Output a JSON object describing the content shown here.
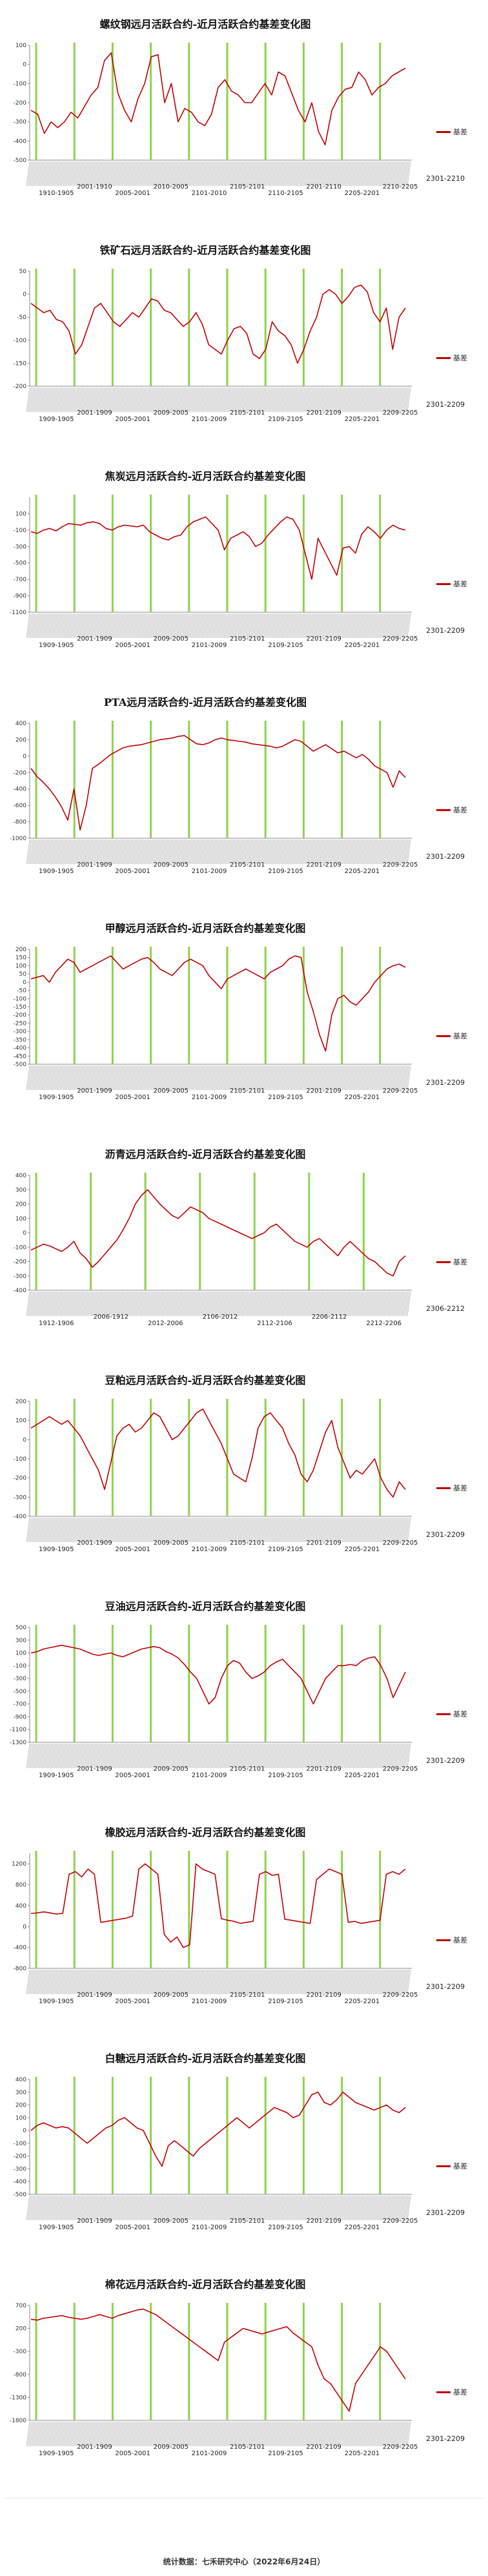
{
  "footer": "统计数据：七禾研究中心（2022年6月24日）",
  "colors": {
    "series": "#c00000",
    "marker": "#8fd14f",
    "axis": "#888888"
  },
  "chart_data": [
    {
      "type": "line",
      "title": "螺纹钢远月活跃合约-近月活跃合约基差变化图",
      "legend": "基差",
      "ylim": [
        -500,
        100
      ],
      "yticks": [
        100,
        0,
        -100,
        -200,
        -300,
        -400,
        -500
      ],
      "contract_labels": [
        "1910-1905",
        "2001-1910",
        "2005-2001",
        "2010-2005",
        "2101-2010",
        "2105-2101",
        "2110-2105",
        "2201-2110",
        "2205-2201",
        "2210-2205"
      ],
      "last_contract": "2301-2210",
      "series": [
        {
          "values": [
            -240,
            -260,
            -360,
            -300,
            -330,
            -300,
            -250,
            -280,
            -220,
            -160,
            -120,
            20,
            60,
            -150,
            -240,
            -300,
            -180,
            -100,
            40,
            50,
            -200,
            -100,
            -300,
            -230,
            -250,
            -300,
            -320,
            -260,
            -120,
            -80,
            -140,
            -160,
            -200,
            -200,
            -150,
            -100,
            -160,
            -40,
            -60,
            -150,
            -240,
            -300,
            -200,
            -350,
            -420,
            -240,
            -170,
            -130,
            -120,
            -40,
            -80,
            -160,
            -120,
            -100,
            -60,
            -40,
            -20
          ]
        }
      ]
    },
    {
      "type": "line",
      "title": "铁矿石远月活跃合约-近月活跃合约基差变化图",
      "legend": "基差",
      "ylim": [
        -200,
        50
      ],
      "yticks": [
        50,
        0,
        -50,
        -100,
        -150,
        -200
      ],
      "contract_labels": [
        "1909-1905",
        "2001-1909",
        "2005-2001",
        "2009-2005",
        "2101-2009",
        "2105-2101",
        "2109-2105",
        "2201-2109",
        "2205-2201",
        "2209-2205"
      ],
      "last_contract": "2301-2209",
      "series": [
        {
          "values": [
            -20,
            -30,
            -40,
            -35,
            -55,
            -60,
            -80,
            -130,
            -110,
            -70,
            -30,
            -20,
            -40,
            -60,
            -70,
            -55,
            -40,
            -50,
            -30,
            -10,
            -15,
            -35,
            -40,
            -55,
            -70,
            -60,
            -40,
            -65,
            -110,
            -120,
            -130,
            -100,
            -75,
            -70,
            -85,
            -130,
            -140,
            -120,
            -60,
            -80,
            -90,
            -110,
            -150,
            -120,
            -80,
            -50,
            0,
            10,
            0,
            -20,
            -5,
            15,
            20,
            5,
            -40,
            -60,
            -30,
            -120,
            -50,
            -30
          ]
        }
      ]
    },
    {
      "type": "line",
      "title": "焦炭远月活跃合约-近月活跃合约基差变化图",
      "legend": "基差",
      "ylim": [
        -1100,
        300
      ],
      "yticks": [
        100,
        -100,
        -300,
        -500,
        -700,
        -900,
        -1100
      ],
      "contract_labels": [
        "1909-1905",
        "2001-1909",
        "2005-2001",
        "2009-2005",
        "2101-2009",
        "2105-2101",
        "2109-2105",
        "2201-2109",
        "2205-2201",
        "2209-2205"
      ],
      "last_contract": "2301-2209",
      "series": [
        {
          "values": [
            -120,
            -140,
            -100,
            -80,
            -110,
            -60,
            -20,
            -30,
            -40,
            -10,
            0,
            -20,
            -80,
            -100,
            -60,
            -40,
            -50,
            -60,
            -40,
            -120,
            -160,
            -200,
            -220,
            -180,
            -160,
            -60,
            0,
            30,
            60,
            -20,
            -100,
            -340,
            -200,
            -160,
            -120,
            -180,
            -300,
            -260,
            -160,
            -80,
            0,
            60,
            30,
            -100,
            -400,
            -700,
            -200,
            -350,
            -500,
            -650,
            -320,
            -300,
            -380,
            -150,
            -60,
            -120,
            -200,
            -100,
            -40,
            -80,
            -100
          ]
        }
      ]
    },
    {
      "type": "line",
      "title": "PTA远月活跃合约-近月活跃合约基差变化图",
      "legend": "基差",
      "ylim": [
        -1000,
        400
      ],
      "yticks": [
        400,
        200,
        0,
        -200,
        -400,
        -600,
        -800,
        -1000
      ],
      "contract_labels": [
        "1909-1905",
        "2001-1909",
        "2005-2001",
        "2009-2005",
        "2101-2009",
        "2105-2101",
        "2109-2105",
        "2201-2109",
        "2205-2201",
        "2209-2205"
      ],
      "last_contract": "2301-2209",
      "series": [
        {
          "values": [
            -150,
            -250,
            -320,
            -400,
            -500,
            -620,
            -780,
            -400,
            -900,
            -600,
            -150,
            -100,
            -40,
            20,
            60,
            100,
            120,
            130,
            140,
            160,
            180,
            200,
            210,
            220,
            240,
            250,
            200,
            150,
            140,
            160,
            200,
            220,
            200,
            190,
            180,
            170,
            150,
            140,
            130,
            120,
            100,
            120,
            160,
            200,
            180,
            120,
            60,
            100,
            140,
            90,
            40,
            60,
            20,
            -20,
            20,
            -40,
            -120,
            -160,
            -200,
            -380,
            -180,
            -260
          ]
        }
      ]
    },
    {
      "type": "line",
      "title": "甲醇远月活跃合约-近月活跃合约基差变化图",
      "legend": "基差",
      "ylim": [
        -500,
        200
      ],
      "yticks": [
        200,
        150,
        100,
        50,
        0,
        -50,
        -100,
        -150,
        -200,
        -250,
        -300,
        -350,
        -400,
        -450,
        -500
      ],
      "contract_labels": [
        "1909-1905",
        "2001-1909",
        "2005-2001",
        "2009-2005",
        "2101-2009",
        "2105-2101",
        "2109-2105",
        "2201-2109",
        "2205-2201",
        "2209-2205"
      ],
      "last_contract": "2301-2209",
      "series": [
        {
          "values": [
            20,
            30,
            40,
            0,
            60,
            100,
            140,
            120,
            60,
            80,
            100,
            120,
            140,
            160,
            120,
            80,
            100,
            120,
            140,
            150,
            120,
            80,
            60,
            40,
            80,
            120,
            140,
            120,
            100,
            40,
            0,
            -40,
            20,
            40,
            60,
            80,
            60,
            40,
            20,
            60,
            80,
            100,
            140,
            160,
            150,
            -60,
            -180,
            -320,
            -420,
            -200,
            -100,
            -80,
            -120,
            -140,
            -100,
            -60,
            0,
            40,
            80,
            100,
            110,
            90
          ]
        }
      ]
    },
    {
      "type": "line",
      "title": "沥青远月活跃合约-近月活跃合约基差变化图",
      "legend": "基差",
      "ylim": [
        -400,
        400
      ],
      "yticks": [
        400,
        300,
        200,
        100,
        0,
        -100,
        -200,
        -300,
        -400
      ],
      "contract_labels": [
        "1912-1906",
        "2006-1912",
        "2012-2006",
        "2106-2012",
        "2112-2106",
        "2206-2112",
        "2212-2206"
      ],
      "last_contract": "2306-2212",
      "series": [
        {
          "values": [
            -120,
            -100,
            -80,
            -90,
            -110,
            -130,
            -100,
            -60,
            -140,
            -180,
            -240,
            -200,
            -150,
            -100,
            -50,
            20,
            100,
            200,
            260,
            300,
            250,
            200,
            160,
            120,
            100,
            140,
            180,
            160,
            140,
            100,
            80,
            60,
            40,
            20,
            0,
            -20,
            -40,
            -20,
            0,
            40,
            60,
            20,
            -20,
            -60,
            -80,
            -100,
            -60,
            -40,
            -80,
            -120,
            -160,
            -100,
            -60,
            -100,
            -140,
            -180,
            -200,
            -240,
            -280,
            -300,
            -200,
            -160
          ]
        }
      ]
    },
    {
      "type": "line",
      "title": "豆粕远月活跃合约-近月活跃合约基差变化图",
      "legend": "基差",
      "ylim": [
        -400,
        200
      ],
      "yticks": [
        200,
        100,
        0,
        -100,
        -200,
        -300,
        -400
      ],
      "contract_labels": [
        "1909-1905",
        "2001-1909",
        "2005-2001",
        "2009-2005",
        "2101-2009",
        "2105-2101",
        "2109-2105",
        "2201-2109",
        "2205-2201",
        "2209-2205"
      ],
      "last_contract": "2301-2209",
      "series": [
        {
          "values": [
            60,
            80,
            100,
            120,
            100,
            80,
            100,
            60,
            20,
            -40,
            -100,
            -160,
            -260,
            -120,
            20,
            60,
            80,
            40,
            60,
            100,
            140,
            120,
            60,
            0,
            20,
            60,
            100,
            140,
            160,
            100,
            40,
            -20,
            -100,
            -180,
            -200,
            -220,
            -100,
            60,
            120,
            140,
            100,
            60,
            -20,
            -80,
            -180,
            -220,
            -160,
            -60,
            40,
            100,
            -40,
            -120,
            -200,
            -160,
            -180,
            -140,
            -100,
            -200,
            -260,
            -300,
            -220,
            -260
          ]
        }
      ]
    },
    {
      "type": "line",
      "title": "豆油远月活跃合约-近月活跃合约基差变化图",
      "legend": "基差",
      "ylim": [
        -1300,
        500
      ],
      "yticks": [
        500,
        300,
        100,
        -100,
        -300,
        -500,
        -700,
        -900,
        -1100,
        -1300
      ],
      "contract_labels": [
        "1909-1905",
        "2001-1909",
        "2005-2001",
        "2009-2005",
        "2101-2009",
        "2105-2101",
        "2109-2105",
        "2201-2109",
        "2205-2201",
        "2209-2205"
      ],
      "last_contract": "2301-2209",
      "series": [
        {
          "values": [
            100,
            120,
            160,
            180,
            200,
            220,
            200,
            180,
            160,
            120,
            80,
            60,
            80,
            100,
            60,
            40,
            80,
            120,
            160,
            180,
            200,
            180,
            120,
            80,
            20,
            -80,
            -200,
            -300,
            -500,
            -700,
            -600,
            -300,
            -100,
            -20,
            -60,
            -200,
            -300,
            -260,
            -200,
            -100,
            -40,
            0,
            -100,
            -200,
            -300,
            -500,
            -700,
            -500,
            -300,
            -200,
            -100,
            -100,
            -80,
            -100,
            -20,
            20,
            40,
            -100,
            -300,
            -600,
            -400,
            -200
          ]
        }
      ]
    },
    {
      "type": "line",
      "title": "橡胶远月活跃合约-近月活跃合约基差变化图",
      "legend": "基差",
      "ylim": [
        -800,
        1400
      ],
      "yticks": [
        1200,
        800,
        400,
        0,
        -400,
        -800
      ],
      "contract_labels": [
        "1909-1905",
        "2001-1909",
        "2005-2001",
        "2009-2005",
        "2101-2009",
        "2105-2101",
        "2109-2105",
        "2201-2109",
        "2205-2201",
        "2209-2205"
      ],
      "last_contract": "2301-2209",
      "series": [
        {
          "values": [
            250,
            260,
            280,
            260,
            240,
            250,
            1000,
            1050,
            950,
            1100,
            1000,
            80,
            100,
            120,
            140,
            160,
            200,
            1100,
            1200,
            1100,
            1000,
            -150,
            -300,
            -200,
            -400,
            -350,
            1200,
            1100,
            1050,
            1000,
            150,
            120,
            100,
            60,
            80,
            100,
            1000,
            1050,
            980,
            1000,
            140,
            120,
            100,
            80,
            60,
            900,
            1000,
            1100,
            1050,
            1000,
            80,
            100,
            60,
            80,
            100,
            120,
            1000,
            1050,
            1000,
            1100
          ]
        }
      ]
    },
    {
      "type": "line",
      "title": "白糖远月活跃合约-近月活跃合约基差变化图",
      "legend": "基差",
      "ylim": [
        -500,
        400
      ],
      "yticks": [
        400,
        300,
        200,
        100,
        0,
        -100,
        -200,
        -300,
        -400,
        -500
      ],
      "contract_labels": [
        "1909-1905",
        "2001-1909",
        "2005-2001",
        "2009-2005",
        "2101-2009",
        "2105-2101",
        "2109-2105",
        "2201-2109",
        "2205-2201",
        "2209-2205"
      ],
      "last_contract": "2301-2209",
      "series": [
        {
          "values": [
            0,
            40,
            60,
            40,
            20,
            30,
            20,
            -20,
            -60,
            -100,
            -60,
            -20,
            20,
            40,
            80,
            100,
            60,
            20,
            0,
            -100,
            -200,
            -280,
            -120,
            -80,
            -120,
            -160,
            -200,
            -140,
            -100,
            -60,
            -20,
            20,
            60,
            100,
            60,
            20,
            60,
            100,
            140,
            180,
            160,
            140,
            100,
            120,
            200,
            280,
            300,
            220,
            200,
            240,
            300,
            260,
            220,
            200,
            180,
            160,
            180,
            200,
            160,
            140,
            180
          ]
        }
      ]
    },
    {
      "type": "line",
      "title": "棉花远月活跃合约-近月活跃合约基差变化图",
      "legend": "基差",
      "ylim": [
        -1800,
        700
      ],
      "yticks": [
        700,
        200,
        -300,
        -800,
        -1300,
        -1800
      ],
      "contract_labels": [
        "1909-1905",
        "2001-1909",
        "2005-2001",
        "2009-2005",
        "2101-2009",
        "2105-2101",
        "2109-2105",
        "2201-2109",
        "2205-2201",
        "2209-2205"
      ],
      "last_contract": "2301-2209",
      "series": [
        {
          "values": [
            400,
            380,
            420,
            440,
            460,
            480,
            440,
            420,
            400,
            420,
            460,
            500,
            460,
            420,
            480,
            520,
            560,
            600,
            620,
            560,
            500,
            400,
            300,
            200,
            100,
            0,
            -100,
            -200,
            -300,
            -400,
            -500,
            -100,
            0,
            100,
            200,
            160,
            120,
            80,
            120,
            160,
            200,
            240,
            100,
            0,
            -100,
            -200,
            -600,
            -900,
            -1000,
            -1200,
            -1400,
            -1600,
            -1000,
            -800,
            -600,
            -400,
            -200,
            -300,
            -500,
            -700,
            -900
          ]
        }
      ]
    }
  ]
}
